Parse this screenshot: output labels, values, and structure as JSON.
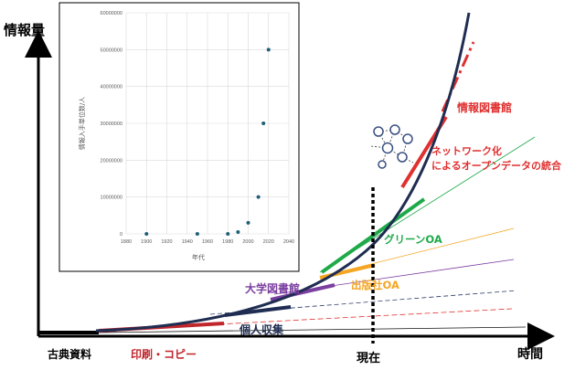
{
  "colors": {
    "axis": "#000000",
    "curve": "#1f2d52",
    "red": "#e03030",
    "green": "#1faa4a",
    "orange": "#f5a623",
    "purple": "#7b3fa0",
    "navy": "#2b3a67",
    "black_line": "#111111",
    "scatter_point": "#1f5f78"
  },
  "diagram": {
    "y_axis_label": "情報量",
    "x_axis_label": "時間",
    "now_label": "現在",
    "eras": [
      {
        "id": "classic",
        "label": "古典資料",
        "color": "#000000"
      },
      {
        "id": "print",
        "label": "印刷・コピー",
        "color": "#c0262c"
      },
      {
        "id": "personal",
        "label": "個人収集",
        "color": "#1f2d52"
      },
      {
        "id": "library",
        "label": "大学図書館",
        "color": "#7b3fa0"
      },
      {
        "id": "office",
        "label": "出版社OA",
        "color": "#f5a623"
      },
      {
        "id": "green",
        "label": "グリーンOA",
        "color": "#1faa4a"
      },
      {
        "id": "network",
        "label": "ネットワーク化\nによるオープンデータの統合",
        "color": "#e03030"
      },
      {
        "id": "info_library",
        "label": "情報図書館",
        "color": "#e03030"
      }
    ],
    "network_icon": "network-graph-icon"
  },
  "chart_data": {
    "type": "scatter",
    "title": "",
    "xlabel": "年代",
    "ylabel": "情報入手単位数/人",
    "xlim": [
      1880,
      2040
    ],
    "ylim": [
      0,
      60000000
    ],
    "x_ticks": [
      1880,
      1900,
      1920,
      1940,
      1960,
      1980,
      2000,
      2020,
      2040
    ],
    "y_ticks": [
      0,
      10000000,
      20000000,
      30000000,
      40000000,
      50000000,
      60000000
    ],
    "grid": true,
    "points": [
      {
        "x": 1900,
        "y": 0
      },
      {
        "x": 1950,
        "y": 0
      },
      {
        "x": 1980,
        "y": 0
      },
      {
        "x": 1990,
        "y": 500000
      },
      {
        "x": 2000,
        "y": 3000000
      },
      {
        "x": 2010,
        "y": 10000000
      },
      {
        "x": 2015,
        "y": 30000000
      },
      {
        "x": 2020,
        "y": 50000000
      }
    ]
  }
}
